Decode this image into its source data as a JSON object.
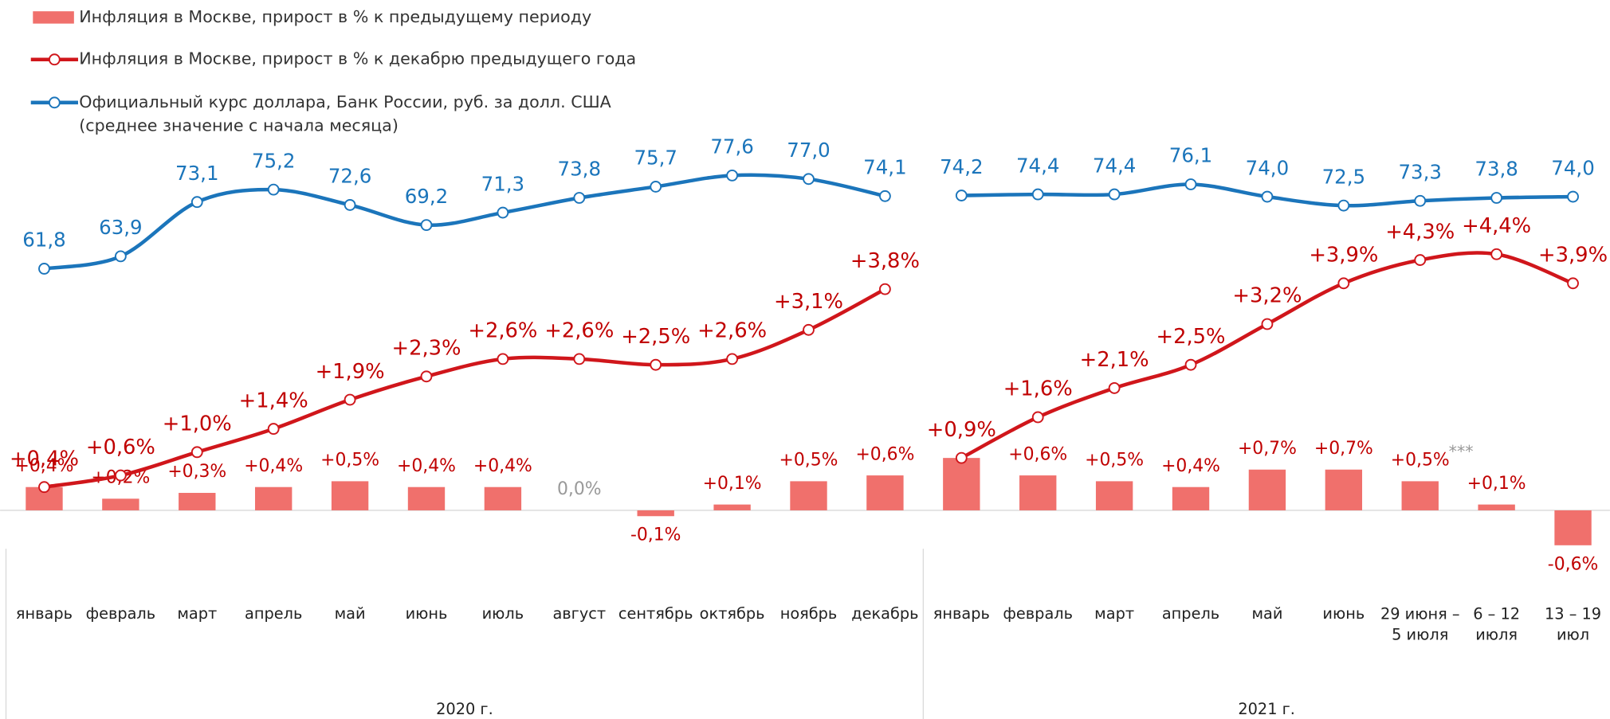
{
  "chart_data": {
    "type": "combo",
    "groups": [
      {
        "label": "2020 г.",
        "categories": [
          "январь",
          "февраль",
          "март",
          "апрель",
          "май",
          "июнь",
          "июль",
          "август",
          "сентябрь",
          "октябрь",
          "ноябрь",
          "декабрь"
        ]
      },
      {
        "label": "2021 г.",
        "categories": [
          "январь",
          "февраль",
          "март",
          "апрель",
          "май",
          "июнь",
          "29 июня –\n5 июля",
          "6 – 12\nиюля",
          "13 – 19\nиюл"
        ]
      }
    ],
    "ylim": [
      -1.1,
      6.3
    ],
    "y2lim": [
      10,
      83
    ],
    "annotation": "***",
    "series": [
      {
        "name": "Инфляция в Москве, прирост в % к предыдущему периоду",
        "type": "bar",
        "color": "#f0706c",
        "values": [
          0.4,
          0.2,
          0.3,
          0.4,
          0.5,
          0.4,
          0.4,
          0.0,
          -0.1,
          0.1,
          0.5,
          0.6,
          0.9,
          0.6,
          0.5,
          0.4,
          0.7,
          0.7,
          0.5,
          0.1,
          -0.6
        ],
        "value_labels": [
          "+0,4%",
          "+0,2%",
          "+0,3%",
          "+0,4%",
          "+0,5%",
          "+0,4%",
          "+0,4%",
          "0,0%",
          "-0,1%",
          "+0,1%",
          "+0,5%",
          "+0,6%",
          "",
          "+0,6%",
          "+0,5%",
          "+0,4%",
          "+0,7%",
          "+0,7%",
          "+0,5%",
          "+0,1%",
          "-0,6%"
        ]
      },
      {
        "name": "Инфляция в Москве, прирост в % к декабрю предыдущего года",
        "type": "line",
        "color": "#d0161b",
        "values": [
          0.4,
          0.6,
          1.0,
          1.4,
          1.9,
          2.3,
          2.6,
          2.6,
          2.5,
          2.6,
          3.1,
          3.8,
          0.9,
          1.6,
          2.1,
          2.5,
          3.2,
          3.9,
          4.3,
          4.4,
          3.9
        ],
        "value_labels": [
          "+0,4%",
          "+0,6%",
          "+1,0%",
          "+1,4%",
          "+1,9%",
          "+2,3%",
          "+2,6%",
          "+2,6%",
          "+2,5%",
          "+2,6%",
          "+3,1%",
          "+3,8%",
          "+0,9%",
          "+1,6%",
          "+2,1%",
          "+2,5%",
          "+3,2%",
          "+3,9%",
          "+4,3%",
          "+4,4%",
          "+3,9%"
        ]
      },
      {
        "name": "Официальный курс доллара, Банк России, руб. за долл. США\n(среднее значение с начала месяца)",
        "type": "line",
        "axis": "y2",
        "color": "#1b75bb",
        "values": [
          61.8,
          63.9,
          73.1,
          75.2,
          72.6,
          69.2,
          71.3,
          73.8,
          75.7,
          77.6,
          77.0,
          74.1,
          74.2,
          74.4,
          74.4,
          76.1,
          74.0,
          72.5,
          73.3,
          73.8,
          74.0
        ],
        "value_labels": [
          "61,8",
          "63,9",
          "73,1",
          "75,2",
          "72,6",
          "69,2",
          "71,3",
          "73,8",
          "75,7",
          "77,6",
          "77,0",
          "74,1",
          "74,2",
          "74,4",
          "74,4",
          "76,1",
          "74,0",
          "72,5",
          "73,3",
          "73,8",
          "74,0"
        ]
      }
    ]
  }
}
